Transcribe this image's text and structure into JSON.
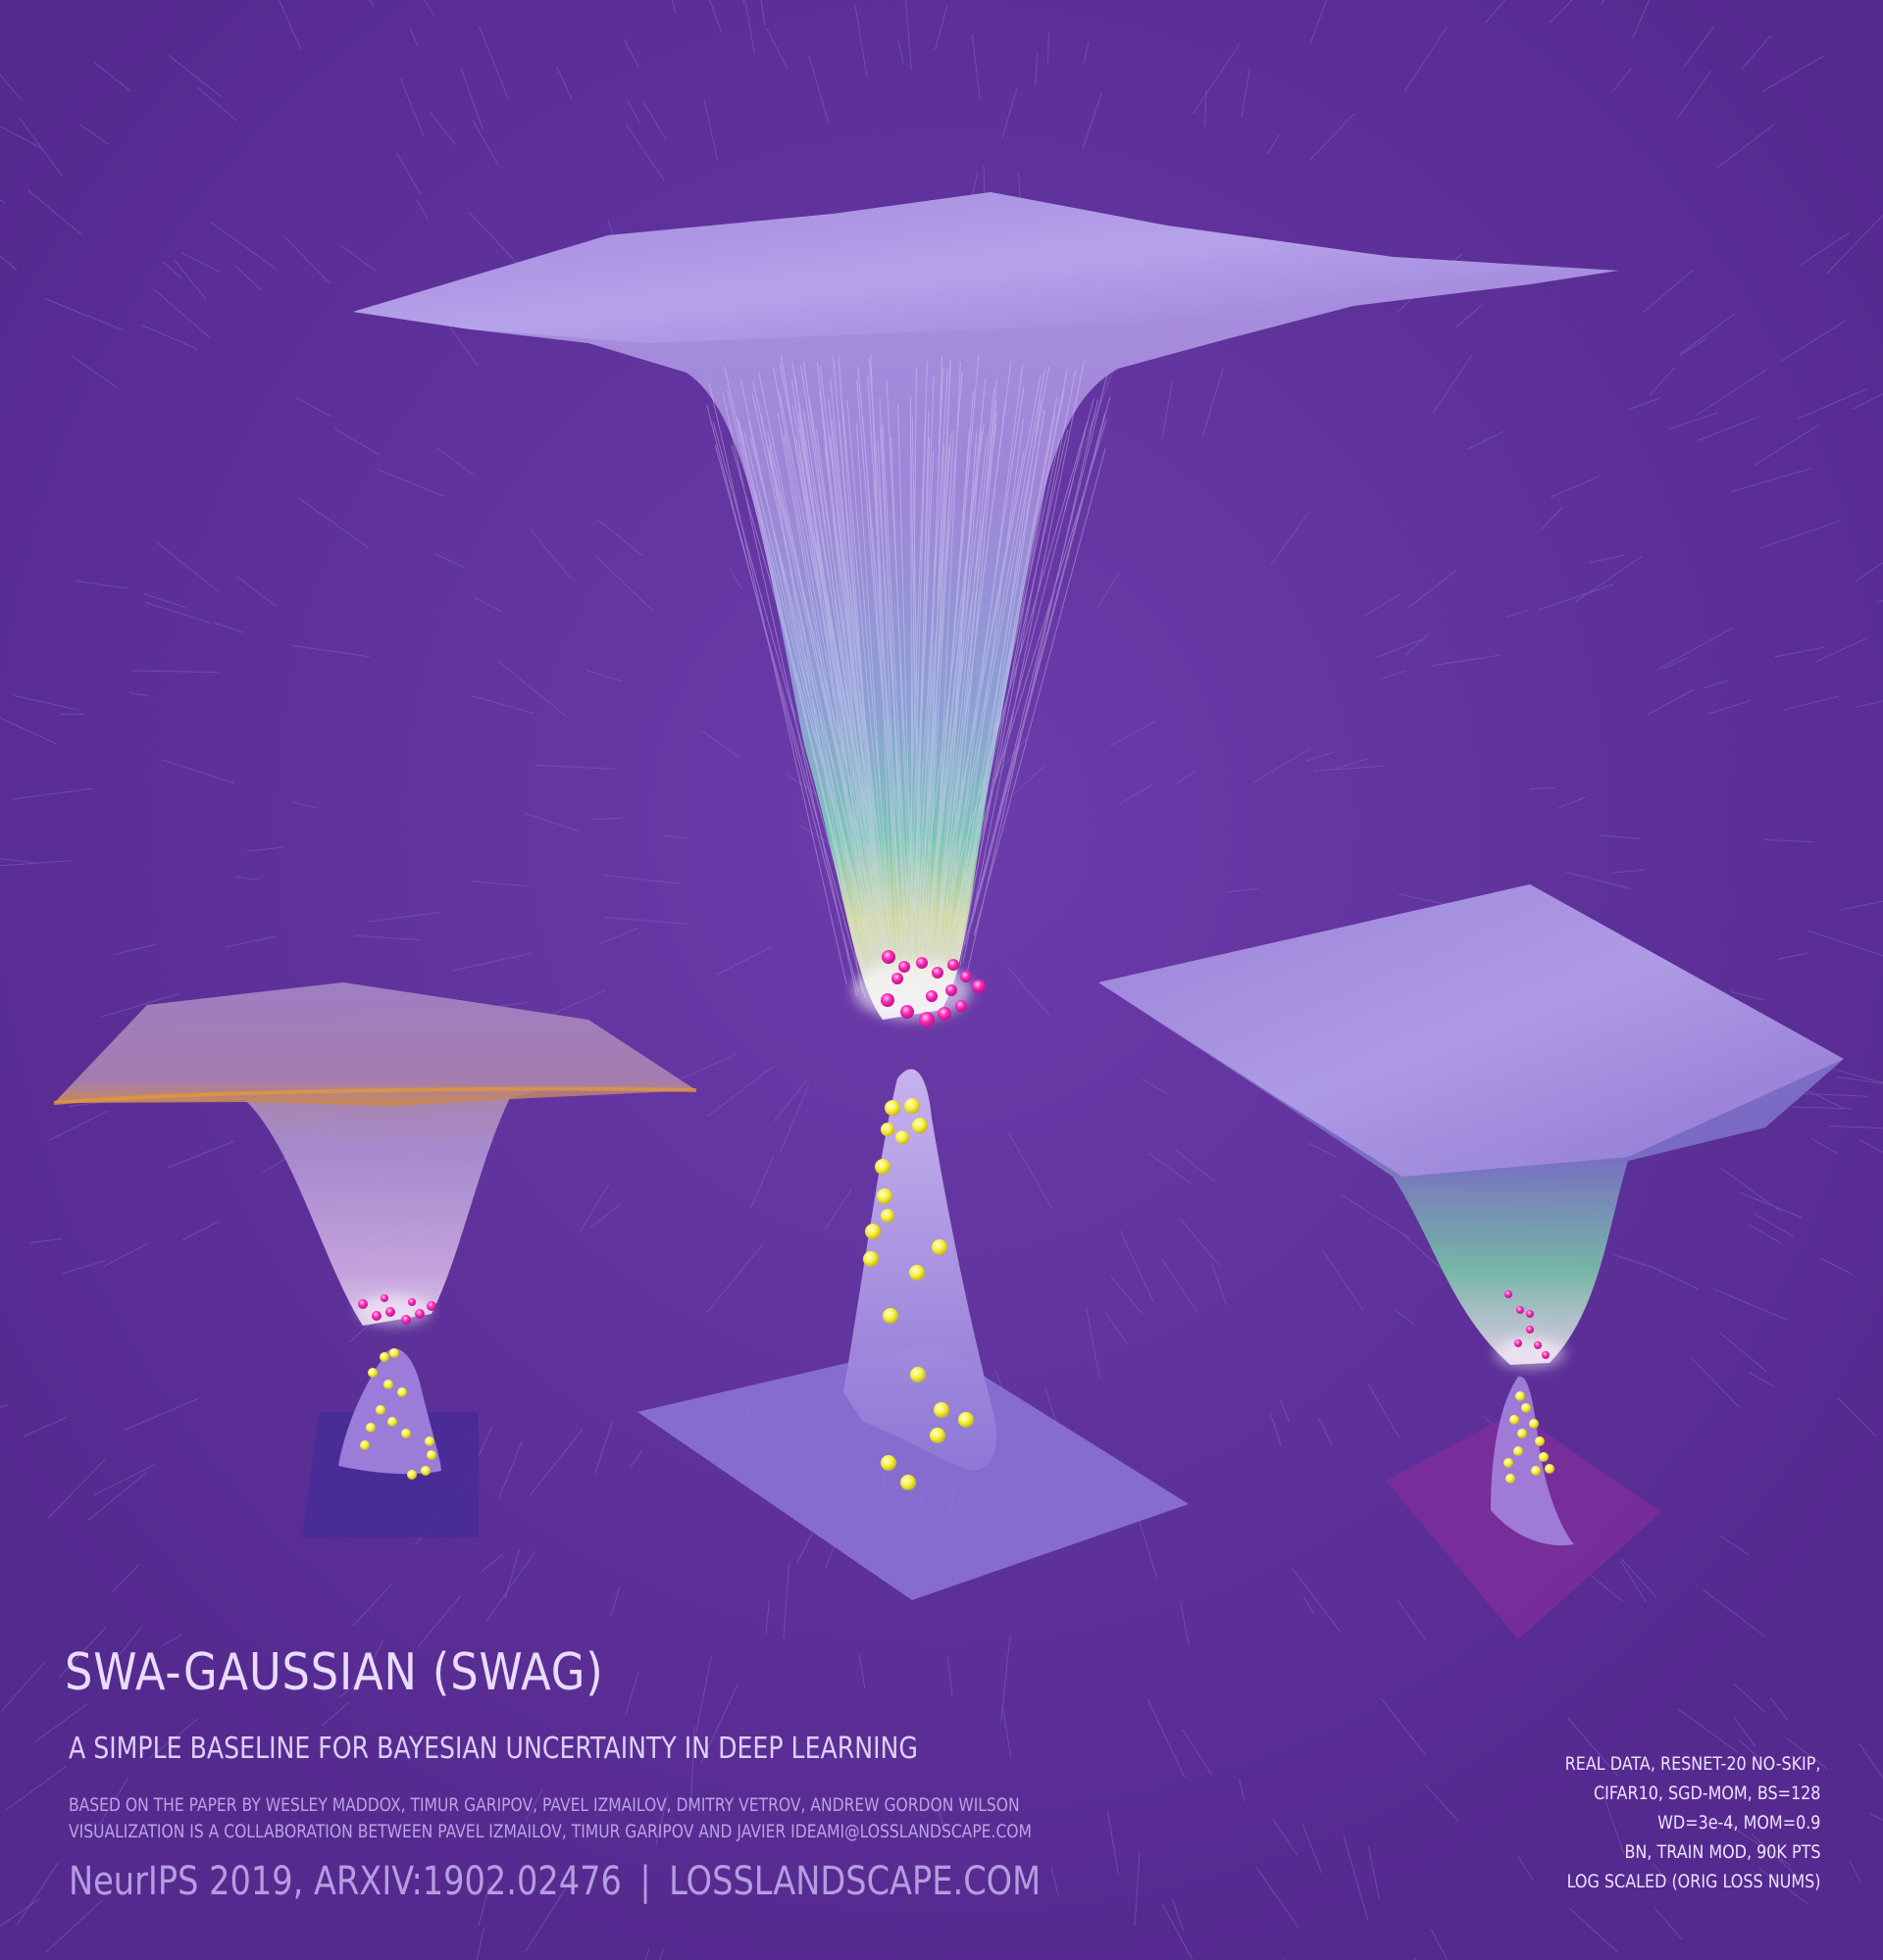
{
  "title": "SWA-GAUSSIAN (SWAG)",
  "subtitle": "A SIMPLE BASELINE FOR BAYESIAN UNCERTAINTY IN DEEP LEARNING",
  "credits": [
    "BASED ON THE PAPER BY WESLEY MADDOX, TIMUR GARIPOV, PAVEL IZMAILOV, DMITRY VETROV, ANDREW GORDON WILSON",
    "VISUALIZATION IS A COLLABORATION BETWEEN PAVEL IZMAILOV, TIMUR GARIPOV AND JAVIER IDEAMI@LOSSLANDSCAPE.COM"
  ],
  "footer": {
    "venue": "NeurIPS 2019, ARXIV:1902.02476",
    "separator": "|",
    "site": "LOSSLANDSCAPE.COM"
  },
  "specs": [
    "REAL DATA, RESNET-20 NO-SKIP,",
    "CIFAR10, SGD-MOM, BS=128",
    "WD=3e-4, MOM=0.9",
    "BN, TRAIN MOD, 90K PTS",
    "LOG SCALED (ORIG LOSS NUMS)"
  ],
  "colors": {
    "background": "#5a2d96",
    "surface": "#a58ee0",
    "surface_highlight": "#e6defa",
    "minimum_points": "#ff2bb8",
    "posterior_samples": "#f6f03a",
    "base_plate": "#7a5cc4",
    "warm_edge": "#d4862a"
  }
}
